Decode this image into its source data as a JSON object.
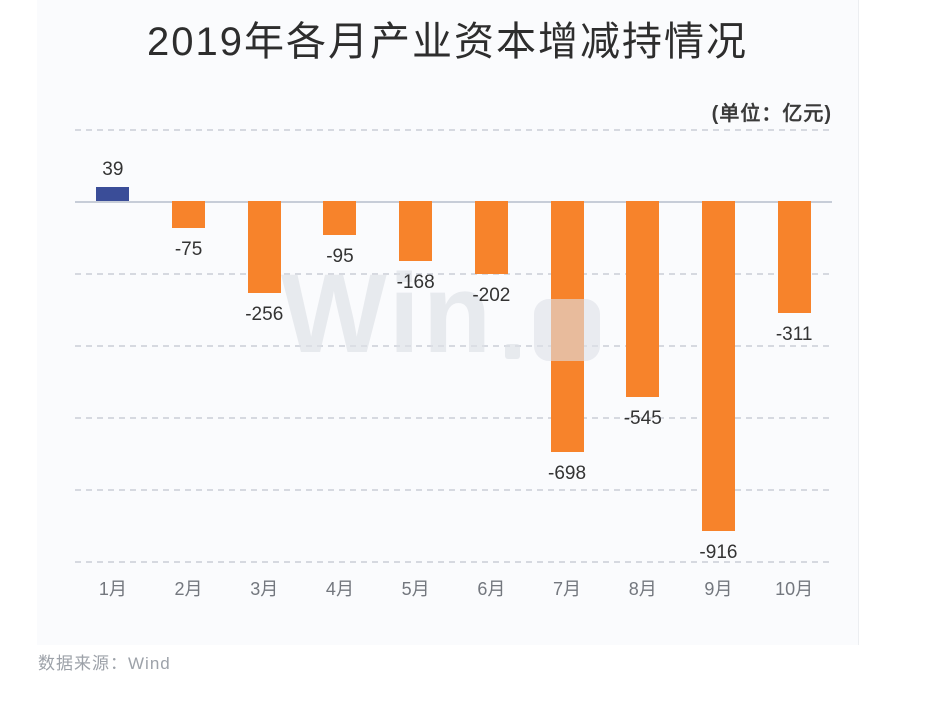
{
  "title": "2019年各月产业资本增减持情况",
  "unit_label": "(单位：亿元)",
  "watermark": {
    "text": "Win"
  },
  "source": {
    "prefix": "数据来源：",
    "name": "Wind"
  },
  "chart_data": {
    "type": "bar",
    "title": "2019年各月产业资本增减持情况",
    "unit": "亿元",
    "categories": [
      "1月",
      "2月",
      "3月",
      "4月",
      "5月",
      "6月",
      "7月",
      "8月",
      "9月",
      "10月"
    ],
    "values": [
      39,
      -75,
      -256,
      -95,
      -168,
      -202,
      -698,
      -545,
      -916,
      -311
    ],
    "ylim": [
      -1000,
      200
    ],
    "grid_step": 200,
    "grid": "dashed-horizontal",
    "legend": "none",
    "colors": {
      "positive": "#3a4d98",
      "negative": "#f7832b"
    },
    "value_labels": "shown-at-bar-ends"
  }
}
